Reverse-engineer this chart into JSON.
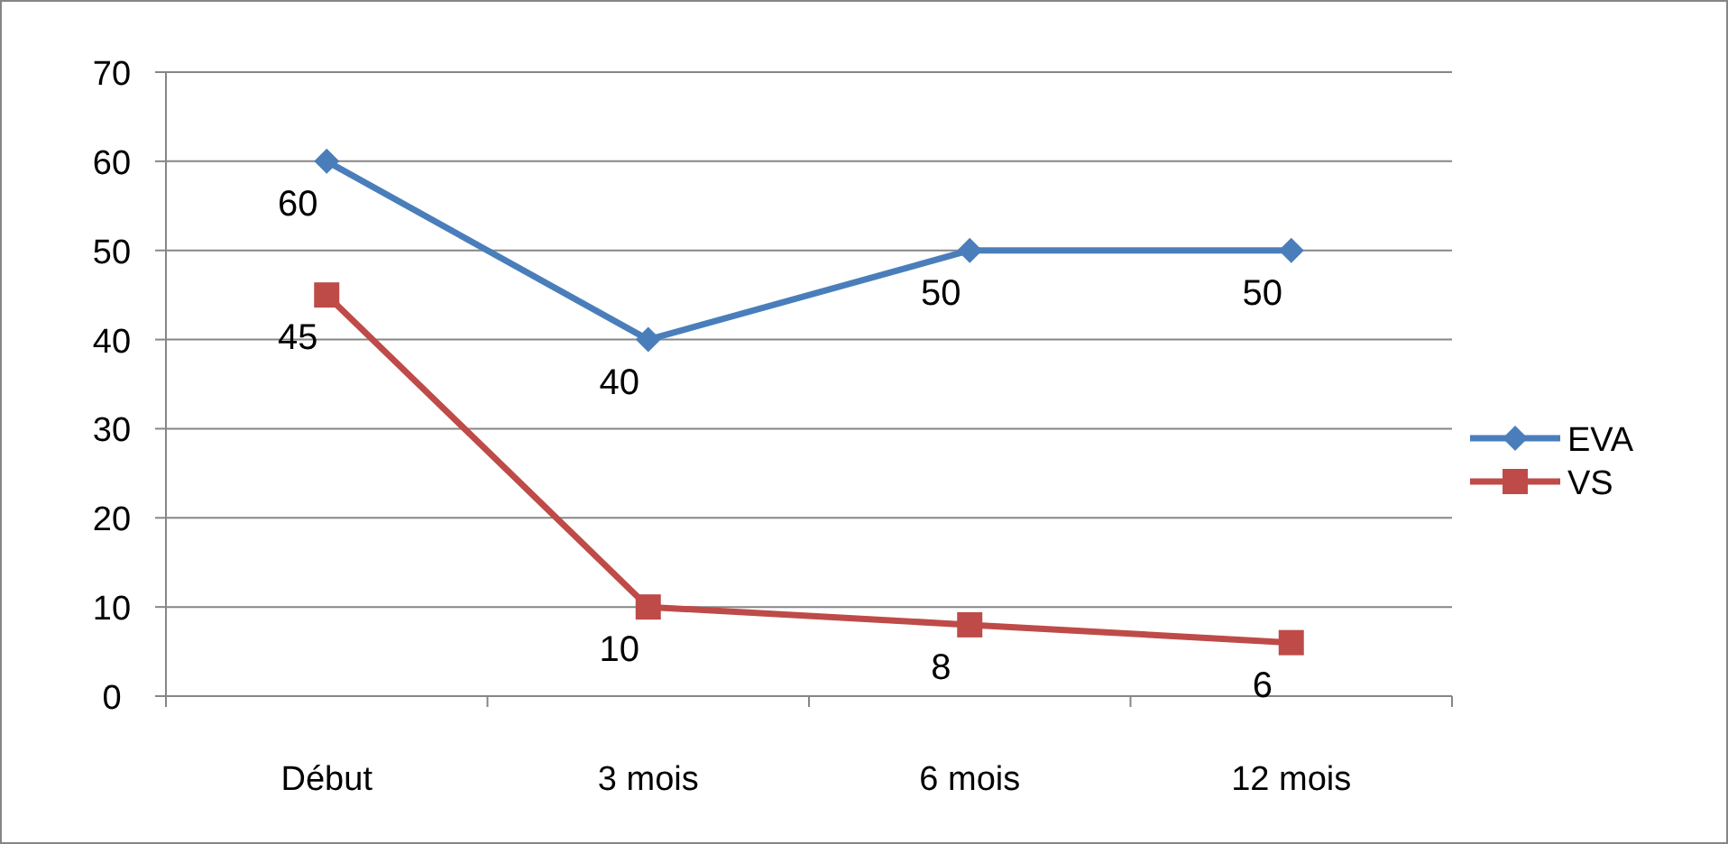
{
  "chart_data": {
    "type": "line",
    "categories": [
      "Début",
      "3 mois",
      "6 mois",
      "12 mois"
    ],
    "series": [
      {
        "name": "EVA",
        "color": "#4a7ebb",
        "values": [
          60,
          40,
          50,
          50
        ],
        "marker": "diamond"
      },
      {
        "name": "VS",
        "color": "#be4b48",
        "values": [
          45,
          10,
          8,
          6
        ],
        "marker": "square"
      }
    ],
    "ylim": [
      0,
      70
    ],
    "yticks": [
      0,
      10,
      20,
      30,
      40,
      50,
      60,
      70
    ],
    "grid": "y",
    "legend": "right",
    "data_labels": true
  }
}
